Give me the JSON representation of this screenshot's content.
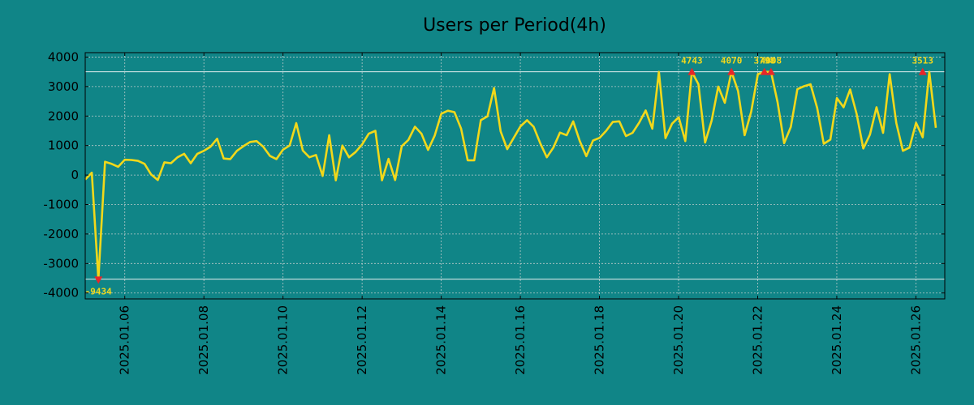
{
  "chart_data": {
    "type": "line",
    "title": "Users per Period(4h)",
    "xlabel": "",
    "ylabel": "",
    "ylim": [
      -4200,
      4150
    ],
    "y_ticks": [
      4000,
      3000,
      2000,
      1000,
      0,
      -1000,
      -2000,
      -3000,
      -4000
    ],
    "y_tick_labels": [
      "4000",
      "3000",
      "2000",
      "1000",
      "0",
      "-1000",
      "-2000",
      "-3000",
      "-4000"
    ],
    "x_range_days": [
      0,
      21.73
    ],
    "x_start_date": "2025.01.05",
    "x_ticks": [
      1,
      3,
      5,
      7,
      9,
      11,
      13,
      15,
      17,
      19,
      21
    ],
    "x_tick_labels": [
      "2025.01.06",
      "2025.01.08",
      "2025.01.10",
      "2025.01.12",
      "2025.01.14",
      "2025.01.16",
      "2025.01.18",
      "2025.01.20",
      "2025.01.22",
      "2025.01.24",
      "2025.01.26"
    ],
    "upper_clip": 3500,
    "lower_clip": -3530,
    "grid": true,
    "series": [
      {
        "name": "Users",
        "x_step_days": 0.1667,
        "values": [
          -150,
          80,
          -3550,
          450,
          380,
          280,
          520,
          510,
          480,
          380,
          20,
          -170,
          430,
          400,
          600,
          720,
          400,
          720,
          820,
          960,
          1230,
          560,
          540,
          820,
          980,
          1120,
          1150,
          960,
          650,
          540,
          860,
          1000,
          1760,
          830,
          600,
          680,
          -30,
          1350,
          -180,
          1000,
          600,
          780,
          1040,
          1400,
          1500,
          -180,
          550,
          -170,
          980,
          1190,
          1640,
          1400,
          850,
          1340,
          2080,
          2180,
          2130,
          1570,
          500,
          500,
          1860,
          1990,
          2950,
          1480,
          880,
          1270,
          1650,
          1860,
          1640,
          1080,
          600,
          930,
          1440,
          1350,
          1820,
          1150,
          640,
          1170,
          1260,
          1500,
          1800,
          1820,
          1320,
          1430,
          1770,
          2190,
          1570,
          3500,
          1250,
          1740,
          1960,
          1150,
          3500,
          3080,
          1100,
          1850,
          3000,
          2450,
          3500,
          2850,
          1350,
          2150,
          3420,
          3500,
          3500,
          2470,
          1080,
          1630,
          2910,
          3010,
          3080,
          2270,
          1060,
          1200,
          2610,
          2300,
          2900,
          2060,
          900,
          1370,
          2300,
          1430,
          3420,
          1760,
          820,
          930,
          1770,
          1280,
          3500,
          1600
        ]
      }
    ],
    "markers": [
      {
        "index": 2,
        "value": -3550,
        "label": "-9434",
        "position": "below"
      },
      {
        "index": 92,
        "value": 3500,
        "label": "4743",
        "position": "above"
      },
      {
        "index": 98,
        "value": 3500,
        "label": "4070",
        "position": "above"
      },
      {
        "index": 103,
        "value": 3500,
        "label": "3798",
        "position": "above"
      },
      {
        "index": 104,
        "value": 3500,
        "label": "4008",
        "position": "above"
      },
      {
        "index": 127,
        "value": 3500,
        "label": "3513",
        "position": "above"
      }
    ]
  },
  "colors": {
    "background": "#108587",
    "line": "#f2d81a",
    "marker": "#e8262a",
    "annotation": "#f2d81a",
    "grid": "#b8c9c9",
    "threshold": "#e6f0f0",
    "axis": "#000000"
  }
}
